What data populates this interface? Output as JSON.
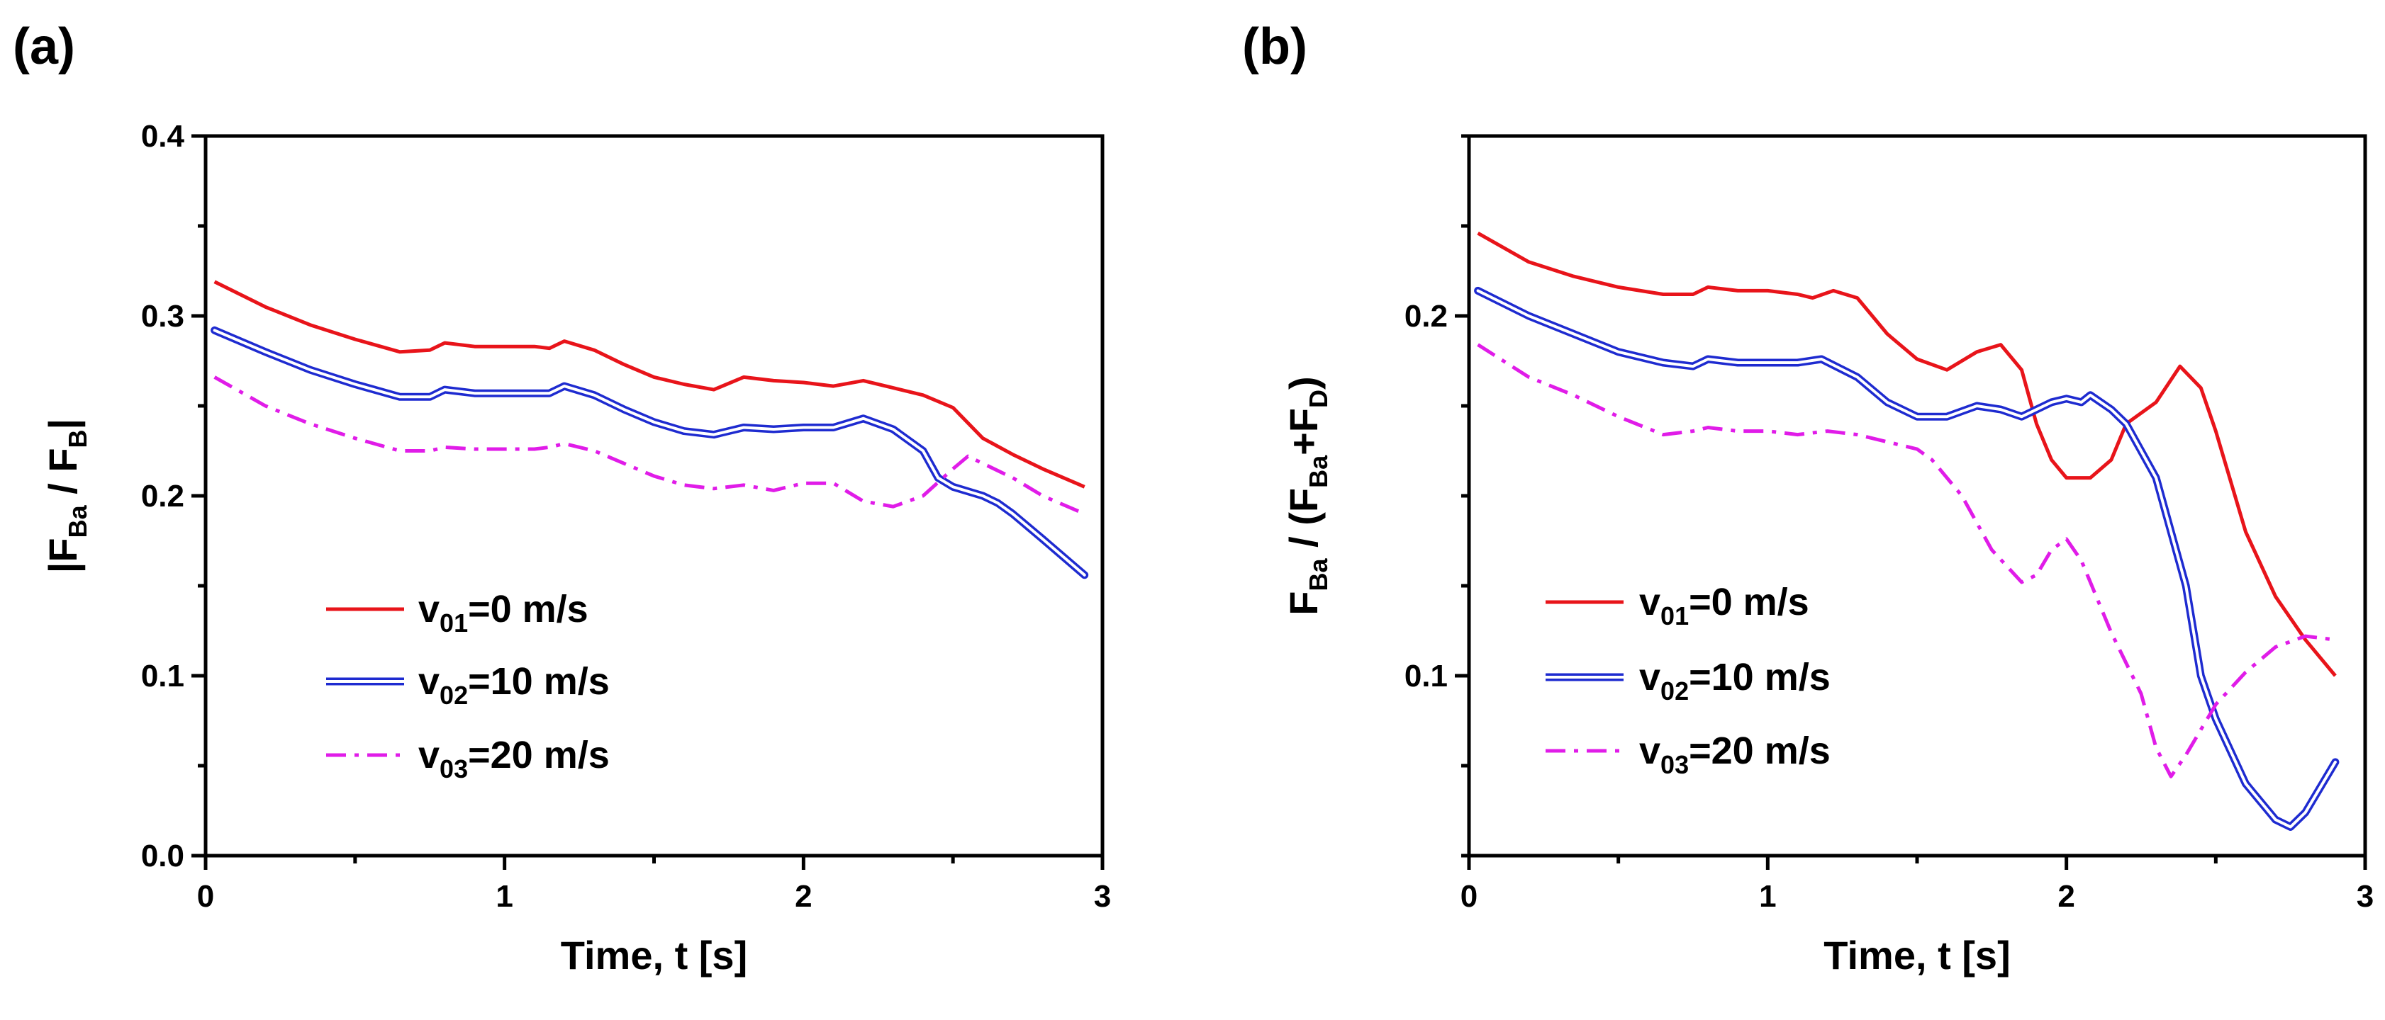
{
  "chart_data": [
    {
      "type": "line",
      "panel_label": "(a)",
      "xlabel": "Time, t [s]",
      "ylabel": {
        "prefix": "|F",
        "sub1": "Ba",
        "mid": " / F",
        "sub2": "B",
        "suffix": "|"
      },
      "xlim": [
        0,
        3
      ],
      "ylim": [
        0,
        0.4
      ],
      "xticks": [
        0,
        1,
        2,
        3
      ],
      "xtick_labels": [
        "0",
        "1",
        "2",
        "3"
      ],
      "yticks": [
        0.0,
        0.1,
        0.2,
        0.3,
        0.4
      ],
      "ytick_labels": [
        "0.0",
        "0.1",
        "0.2",
        "0.3",
        "0.4"
      ],
      "legend_position": "lower-left",
      "series": [
        {
          "name": "v01=0 m/s",
          "label": {
            "prefix": "v",
            "sub": "01",
            "suffix": "=0 m/s"
          },
          "color": "#e8141a",
          "style": "solid",
          "x": [
            0.03,
            0.2,
            0.35,
            0.5,
            0.65,
            0.75,
            0.8,
            0.9,
            1.0,
            1.1,
            1.15,
            1.2,
            1.3,
            1.4,
            1.5,
            1.6,
            1.7,
            1.8,
            1.9,
            2.0,
            2.1,
            2.2,
            2.3,
            2.4,
            2.5,
            2.6,
            2.7,
            2.8,
            2.94
          ],
          "y": [
            0.319,
            0.305,
            0.295,
            0.287,
            0.28,
            0.281,
            0.285,
            0.283,
            0.283,
            0.283,
            0.282,
            0.286,
            0.281,
            0.273,
            0.266,
            0.262,
            0.259,
            0.266,
            0.264,
            0.263,
            0.261,
            0.264,
            0.26,
            0.256,
            0.249,
            0.232,
            0.223,
            0.215,
            0.205
          ]
        },
        {
          "name": "v02=10 m/s",
          "label": {
            "prefix": "v",
            "sub": "02",
            "suffix": "=10 m/s"
          },
          "color": "#1e2bd0",
          "style": "double",
          "x": [
            0.03,
            0.2,
            0.35,
            0.5,
            0.65,
            0.75,
            0.8,
            0.9,
            1.0,
            1.1,
            1.15,
            1.2,
            1.3,
            1.4,
            1.5,
            1.6,
            1.7,
            1.8,
            1.9,
            2.0,
            2.1,
            2.2,
            2.3,
            2.4,
            2.45,
            2.5,
            2.6,
            2.65,
            2.7,
            2.8,
            2.94
          ],
          "y": [
            0.292,
            0.28,
            0.27,
            0.262,
            0.255,
            0.255,
            0.259,
            0.257,
            0.257,
            0.257,
            0.257,
            0.261,
            0.256,
            0.248,
            0.241,
            0.236,
            0.234,
            0.238,
            0.237,
            0.238,
            0.238,
            0.243,
            0.237,
            0.225,
            0.21,
            0.205,
            0.2,
            0.196,
            0.19,
            0.176,
            0.156
          ]
        },
        {
          "name": "v03=20 m/s",
          "label": {
            "prefix": "v",
            "sub": "03",
            "suffix": "=20 m/s"
          },
          "color": "#e01ce8",
          "style": "dashdot",
          "x": [
            0.03,
            0.2,
            0.35,
            0.5,
            0.65,
            0.75,
            0.8,
            0.9,
            1.0,
            1.1,
            1.15,
            1.2,
            1.3,
            1.4,
            1.5,
            1.6,
            1.7,
            1.8,
            1.9,
            2.0,
            2.1,
            2.2,
            2.3,
            2.4,
            2.5,
            2.55,
            2.6,
            2.7,
            2.8,
            2.94
          ],
          "y": [
            0.266,
            0.25,
            0.24,
            0.232,
            0.225,
            0.225,
            0.227,
            0.226,
            0.226,
            0.226,
            0.227,
            0.229,
            0.225,
            0.218,
            0.211,
            0.206,
            0.204,
            0.206,
            0.203,
            0.207,
            0.207,
            0.197,
            0.194,
            0.2,
            0.215,
            0.222,
            0.218,
            0.21,
            0.2,
            0.19
          ]
        }
      ]
    },
    {
      "type": "line",
      "panel_label": "(b)",
      "xlabel": "Time, t [s]",
      "ylabel": {
        "prefix": "F",
        "sub1": "Ba",
        "mid": " / (F",
        "sub2": "Ba",
        "mid2": "+F",
        "sub3": "D",
        "suffix": ")"
      },
      "xlim": [
        0,
        3
      ],
      "ylim": [
        0.05,
        0.25
      ],
      "xticks": [
        0,
        1,
        2,
        3
      ],
      "xtick_labels": [
        "0",
        "1",
        "2",
        "3"
      ],
      "yticks": [
        0.1,
        0.2
      ],
      "ytick_labels": [
        "0.1",
        "0.2"
      ],
      "legend_position": "lower-left",
      "series": [
        {
          "name": "v01=0 m/s",
          "label": {
            "prefix": "v",
            "sub": "01",
            "suffix": "=0 m/s"
          },
          "color": "#e8141a",
          "style": "solid",
          "x": [
            0.03,
            0.2,
            0.35,
            0.5,
            0.65,
            0.75,
            0.8,
            0.9,
            1.0,
            1.1,
            1.15,
            1.22,
            1.3,
            1.4,
            1.5,
            1.6,
            1.7,
            1.78,
            1.85,
            1.9,
            1.95,
            2.0,
            2.08,
            2.15,
            2.2,
            2.3,
            2.38,
            2.45,
            2.5,
            2.6,
            2.7,
            2.8,
            2.9
          ],
          "y": [
            0.223,
            0.215,
            0.211,
            0.208,
            0.206,
            0.206,
            0.208,
            0.207,
            0.207,
            0.206,
            0.205,
            0.207,
            0.205,
            0.195,
            0.188,
            0.185,
            0.19,
            0.192,
            0.185,
            0.17,
            0.16,
            0.155,
            0.155,
            0.16,
            0.17,
            0.176,
            0.186,
            0.18,
            0.168,
            0.14,
            0.122,
            0.11,
            0.1
          ]
        },
        {
          "name": "v02=10 m/s",
          "label": {
            "prefix": "v",
            "sub": "02",
            "suffix": "=10 m/s"
          },
          "color": "#1e2bd0",
          "style": "double",
          "x": [
            0.03,
            0.2,
            0.35,
            0.5,
            0.65,
            0.75,
            0.8,
            0.9,
            1.0,
            1.1,
            1.18,
            1.3,
            1.4,
            1.5,
            1.6,
            1.7,
            1.78,
            1.85,
            1.95,
            2.0,
            2.05,
            2.08,
            2.15,
            2.2,
            2.3,
            2.4,
            2.45,
            2.5,
            2.6,
            2.7,
            2.75,
            2.8,
            2.9
          ],
          "y": [
            0.207,
            0.2,
            0.195,
            0.19,
            0.187,
            0.186,
            0.188,
            0.187,
            0.187,
            0.187,
            0.188,
            0.183,
            0.176,
            0.172,
            0.172,
            0.175,
            0.174,
            0.172,
            0.176,
            0.177,
            0.176,
            0.178,
            0.174,
            0.17,
            0.155,
            0.125,
            0.1,
            0.088,
            0.07,
            0.06,
            0.058,
            0.062,
            0.076
          ]
        },
        {
          "name": "v03=20 m/s",
          "label": {
            "prefix": "v",
            "sub": "03",
            "suffix": "=20 m/s"
          },
          "color": "#e01ce8",
          "style": "dashdot",
          "x": [
            0.03,
            0.2,
            0.35,
            0.5,
            0.65,
            0.75,
            0.8,
            0.9,
            1.0,
            1.1,
            1.2,
            1.3,
            1.4,
            1.5,
            1.55,
            1.65,
            1.75,
            1.85,
            1.9,
            1.95,
            2.0,
            2.05,
            2.15,
            2.25,
            2.3,
            2.35,
            2.4,
            2.5,
            2.6,
            2.7,
            2.8,
            2.9
          ],
          "y": [
            0.192,
            0.183,
            0.178,
            0.172,
            0.167,
            0.168,
            0.169,
            0.168,
            0.168,
            0.167,
            0.168,
            0.167,
            0.165,
            0.163,
            0.16,
            0.15,
            0.135,
            0.126,
            0.128,
            0.135,
            0.138,
            0.132,
            0.112,
            0.095,
            0.08,
            0.072,
            0.078,
            0.092,
            0.101,
            0.108,
            0.111,
            0.11
          ]
        }
      ]
    }
  ]
}
